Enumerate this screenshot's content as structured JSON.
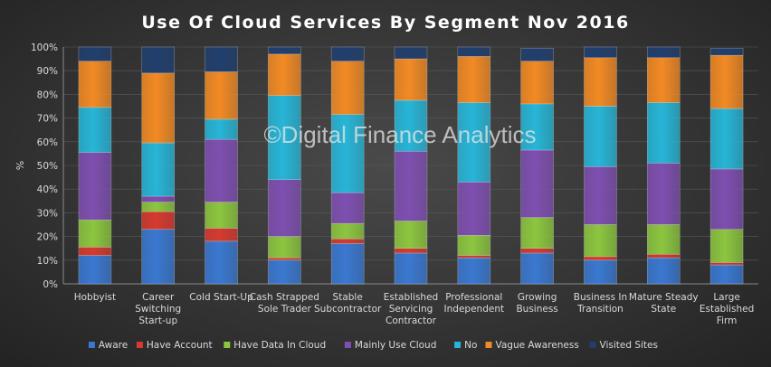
{
  "watermark": "©Digital Finance Analytics",
  "chart_data": {
    "type": "bar",
    "stacked": true,
    "title": "Use Of Cloud Services By Segment Nov 2016",
    "ylabel": "%",
    "xlabel": "",
    "ylim": [
      0,
      100
    ],
    "yticks": [
      "0%",
      "10%",
      "20%",
      "30%",
      "40%",
      "50%",
      "60%",
      "70%",
      "80%",
      "90%",
      "100%"
    ],
    "categories": [
      "Hobbyist",
      "Career Switching Start-up",
      "Cold Start-Up",
      "Cash Strapped Sole Trader",
      "Stable Subcontractor",
      "Established Servicing Contractor",
      "Professional Independent",
      "Growing Business",
      "Business In Transition",
      "Mature Steady State",
      "Large Established Firm"
    ],
    "legend_position": "bottom",
    "series": [
      {
        "name": "Aware",
        "color": "#3a78d0",
        "values": [
          12,
          23,
          18,
          10,
          17,
          13,
          11,
          13,
          10,
          11,
          8
        ]
      },
      {
        "name": "Have Account",
        "color": "#d63a2e",
        "values": [
          3.5,
          7.5,
          5.5,
          1,
          2,
          2,
          1,
          2,
          1.5,
          1.5,
          1
        ]
      },
      {
        "name": "Have Data In Cloud",
        "color": "#8cc63f",
        "values": [
          11.5,
          4,
          11,
          9,
          6.5,
          11.5,
          8.5,
          13,
          13.5,
          12.5,
          14
        ]
      },
      {
        "name": "Mainly Use Cloud",
        "color": "#7e4fb0",
        "values": [
          28.5,
          2.5,
          26.5,
          24,
          13,
          29.5,
          22.5,
          28.5,
          24.5,
          26,
          25.5
        ]
      },
      {
        "name": "No",
        "color": "#27b5d7",
        "values": [
          19,
          22.5,
          8.5,
          35.5,
          33,
          21.5,
          33.5,
          19.5,
          25.5,
          25.5,
          25.5
        ]
      },
      {
        "name": "Vague Awareness",
        "color": "#f28a24",
        "values": [
          19.5,
          29.5,
          20,
          17.5,
          22.5,
          17.5,
          19.5,
          18,
          20.5,
          19,
          22.5
        ]
      },
      {
        "name": "Visited Sites",
        "color": "#213f6e",
        "values": [
          6,
          11,
          10.5,
          3,
          6,
          5,
          4,
          5.5,
          4.5,
          4.5,
          3
        ]
      }
    ]
  }
}
